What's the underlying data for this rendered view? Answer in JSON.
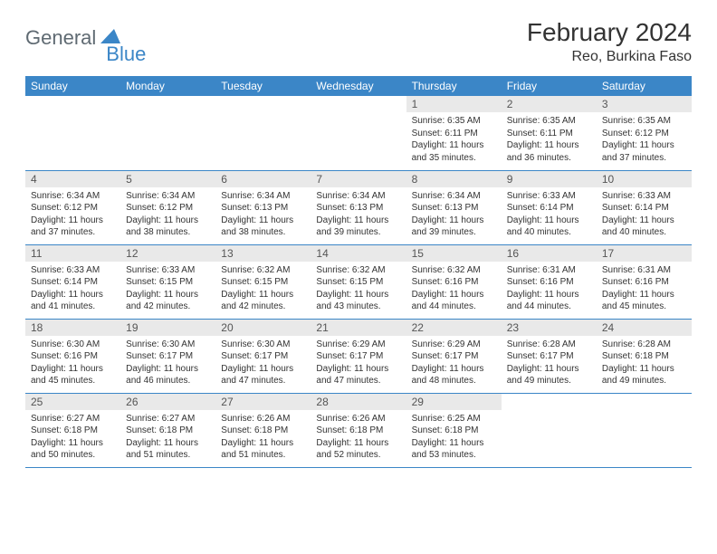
{
  "logo": {
    "part1": "General",
    "part2": "Blue"
  },
  "title": "February 2024",
  "location": "Reo, Burkina Faso",
  "colors": {
    "header_bg": "#3b86c7",
    "header_text": "#ffffff",
    "daynum_bg": "#e9e9e9",
    "border": "#3b86c7",
    "logo_gray": "#5f6a72",
    "logo_blue": "#3b86c7"
  },
  "weekdays": [
    "Sunday",
    "Monday",
    "Tuesday",
    "Wednesday",
    "Thursday",
    "Friday",
    "Saturday"
  ],
  "weeks": [
    [
      null,
      null,
      null,
      null,
      {
        "n": "1",
        "sr": "6:35 AM",
        "ss": "6:11 PM",
        "dl": "11 hours and 35 minutes."
      },
      {
        "n": "2",
        "sr": "6:35 AM",
        "ss": "6:11 PM",
        "dl": "11 hours and 36 minutes."
      },
      {
        "n": "3",
        "sr": "6:35 AM",
        "ss": "6:12 PM",
        "dl": "11 hours and 37 minutes."
      }
    ],
    [
      {
        "n": "4",
        "sr": "6:34 AM",
        "ss": "6:12 PM",
        "dl": "11 hours and 37 minutes."
      },
      {
        "n": "5",
        "sr": "6:34 AM",
        "ss": "6:12 PM",
        "dl": "11 hours and 38 minutes."
      },
      {
        "n": "6",
        "sr": "6:34 AM",
        "ss": "6:13 PM",
        "dl": "11 hours and 38 minutes."
      },
      {
        "n": "7",
        "sr": "6:34 AM",
        "ss": "6:13 PM",
        "dl": "11 hours and 39 minutes."
      },
      {
        "n": "8",
        "sr": "6:34 AM",
        "ss": "6:13 PM",
        "dl": "11 hours and 39 minutes."
      },
      {
        "n": "9",
        "sr": "6:33 AM",
        "ss": "6:14 PM",
        "dl": "11 hours and 40 minutes."
      },
      {
        "n": "10",
        "sr": "6:33 AM",
        "ss": "6:14 PM",
        "dl": "11 hours and 40 minutes."
      }
    ],
    [
      {
        "n": "11",
        "sr": "6:33 AM",
        "ss": "6:14 PM",
        "dl": "11 hours and 41 minutes."
      },
      {
        "n": "12",
        "sr": "6:33 AM",
        "ss": "6:15 PM",
        "dl": "11 hours and 42 minutes."
      },
      {
        "n": "13",
        "sr": "6:32 AM",
        "ss": "6:15 PM",
        "dl": "11 hours and 42 minutes."
      },
      {
        "n": "14",
        "sr": "6:32 AM",
        "ss": "6:15 PM",
        "dl": "11 hours and 43 minutes."
      },
      {
        "n": "15",
        "sr": "6:32 AM",
        "ss": "6:16 PM",
        "dl": "11 hours and 44 minutes."
      },
      {
        "n": "16",
        "sr": "6:31 AM",
        "ss": "6:16 PM",
        "dl": "11 hours and 44 minutes."
      },
      {
        "n": "17",
        "sr": "6:31 AM",
        "ss": "6:16 PM",
        "dl": "11 hours and 45 minutes."
      }
    ],
    [
      {
        "n": "18",
        "sr": "6:30 AM",
        "ss": "6:16 PM",
        "dl": "11 hours and 45 minutes."
      },
      {
        "n": "19",
        "sr": "6:30 AM",
        "ss": "6:17 PM",
        "dl": "11 hours and 46 minutes."
      },
      {
        "n": "20",
        "sr": "6:30 AM",
        "ss": "6:17 PM",
        "dl": "11 hours and 47 minutes."
      },
      {
        "n": "21",
        "sr": "6:29 AM",
        "ss": "6:17 PM",
        "dl": "11 hours and 47 minutes."
      },
      {
        "n": "22",
        "sr": "6:29 AM",
        "ss": "6:17 PM",
        "dl": "11 hours and 48 minutes."
      },
      {
        "n": "23",
        "sr": "6:28 AM",
        "ss": "6:17 PM",
        "dl": "11 hours and 49 minutes."
      },
      {
        "n": "24",
        "sr": "6:28 AM",
        "ss": "6:18 PM",
        "dl": "11 hours and 49 minutes."
      }
    ],
    [
      {
        "n": "25",
        "sr": "6:27 AM",
        "ss": "6:18 PM",
        "dl": "11 hours and 50 minutes."
      },
      {
        "n": "26",
        "sr": "6:27 AM",
        "ss": "6:18 PM",
        "dl": "11 hours and 51 minutes."
      },
      {
        "n": "27",
        "sr": "6:26 AM",
        "ss": "6:18 PM",
        "dl": "11 hours and 51 minutes."
      },
      {
        "n": "28",
        "sr": "6:26 AM",
        "ss": "6:18 PM",
        "dl": "11 hours and 52 minutes."
      },
      {
        "n": "29",
        "sr": "6:25 AM",
        "ss": "6:18 PM",
        "dl": "11 hours and 53 minutes."
      },
      null,
      null
    ]
  ],
  "labels": {
    "sunrise": "Sunrise:",
    "sunset": "Sunset:",
    "daylight": "Daylight:"
  }
}
